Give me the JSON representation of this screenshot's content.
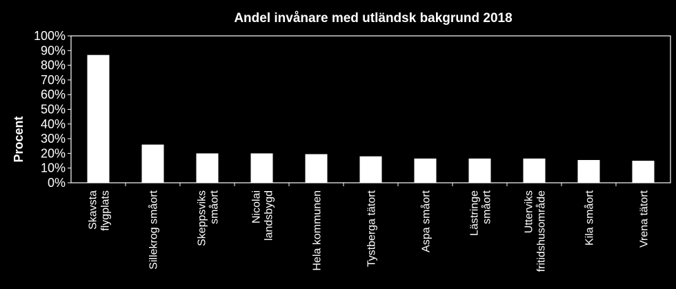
{
  "chart_data": {
    "type": "bar",
    "title": "Andel invånare med utländsk bakgrund 2018",
    "ylabel": "Procent",
    "xlabel": "",
    "ylim": [
      0,
      100
    ],
    "yticks": [
      "0%",
      "10%",
      "20%",
      "30%",
      "40%",
      "50%",
      "60%",
      "70%",
      "80%",
      "90%",
      "100%"
    ],
    "grid": false,
    "legend": "none",
    "categories": [
      [
        "Skavsta",
        "flygplats"
      ],
      [
        "Sillekrog småort"
      ],
      [
        "Skeppsviks",
        "småort"
      ],
      [
        "Nicolai",
        "landsbygd"
      ],
      [
        "Hela kommunen"
      ],
      [
        "Tystberga tätort"
      ],
      [
        "Aspa småort"
      ],
      [
        "Lästringe",
        "småort"
      ],
      [
        "Utterviks",
        "fritidshusområde"
      ],
      [
        "Kila småort"
      ],
      [
        "Vrena tätort"
      ]
    ],
    "values": [
      87,
      26,
      20,
      20,
      19.5,
      18,
      16.5,
      16.5,
      16.5,
      15.5,
      15
    ],
    "colors": {
      "background": "#000000",
      "bar": "#ffffff",
      "axis": "#ffffff",
      "text": "#ffffff"
    }
  }
}
